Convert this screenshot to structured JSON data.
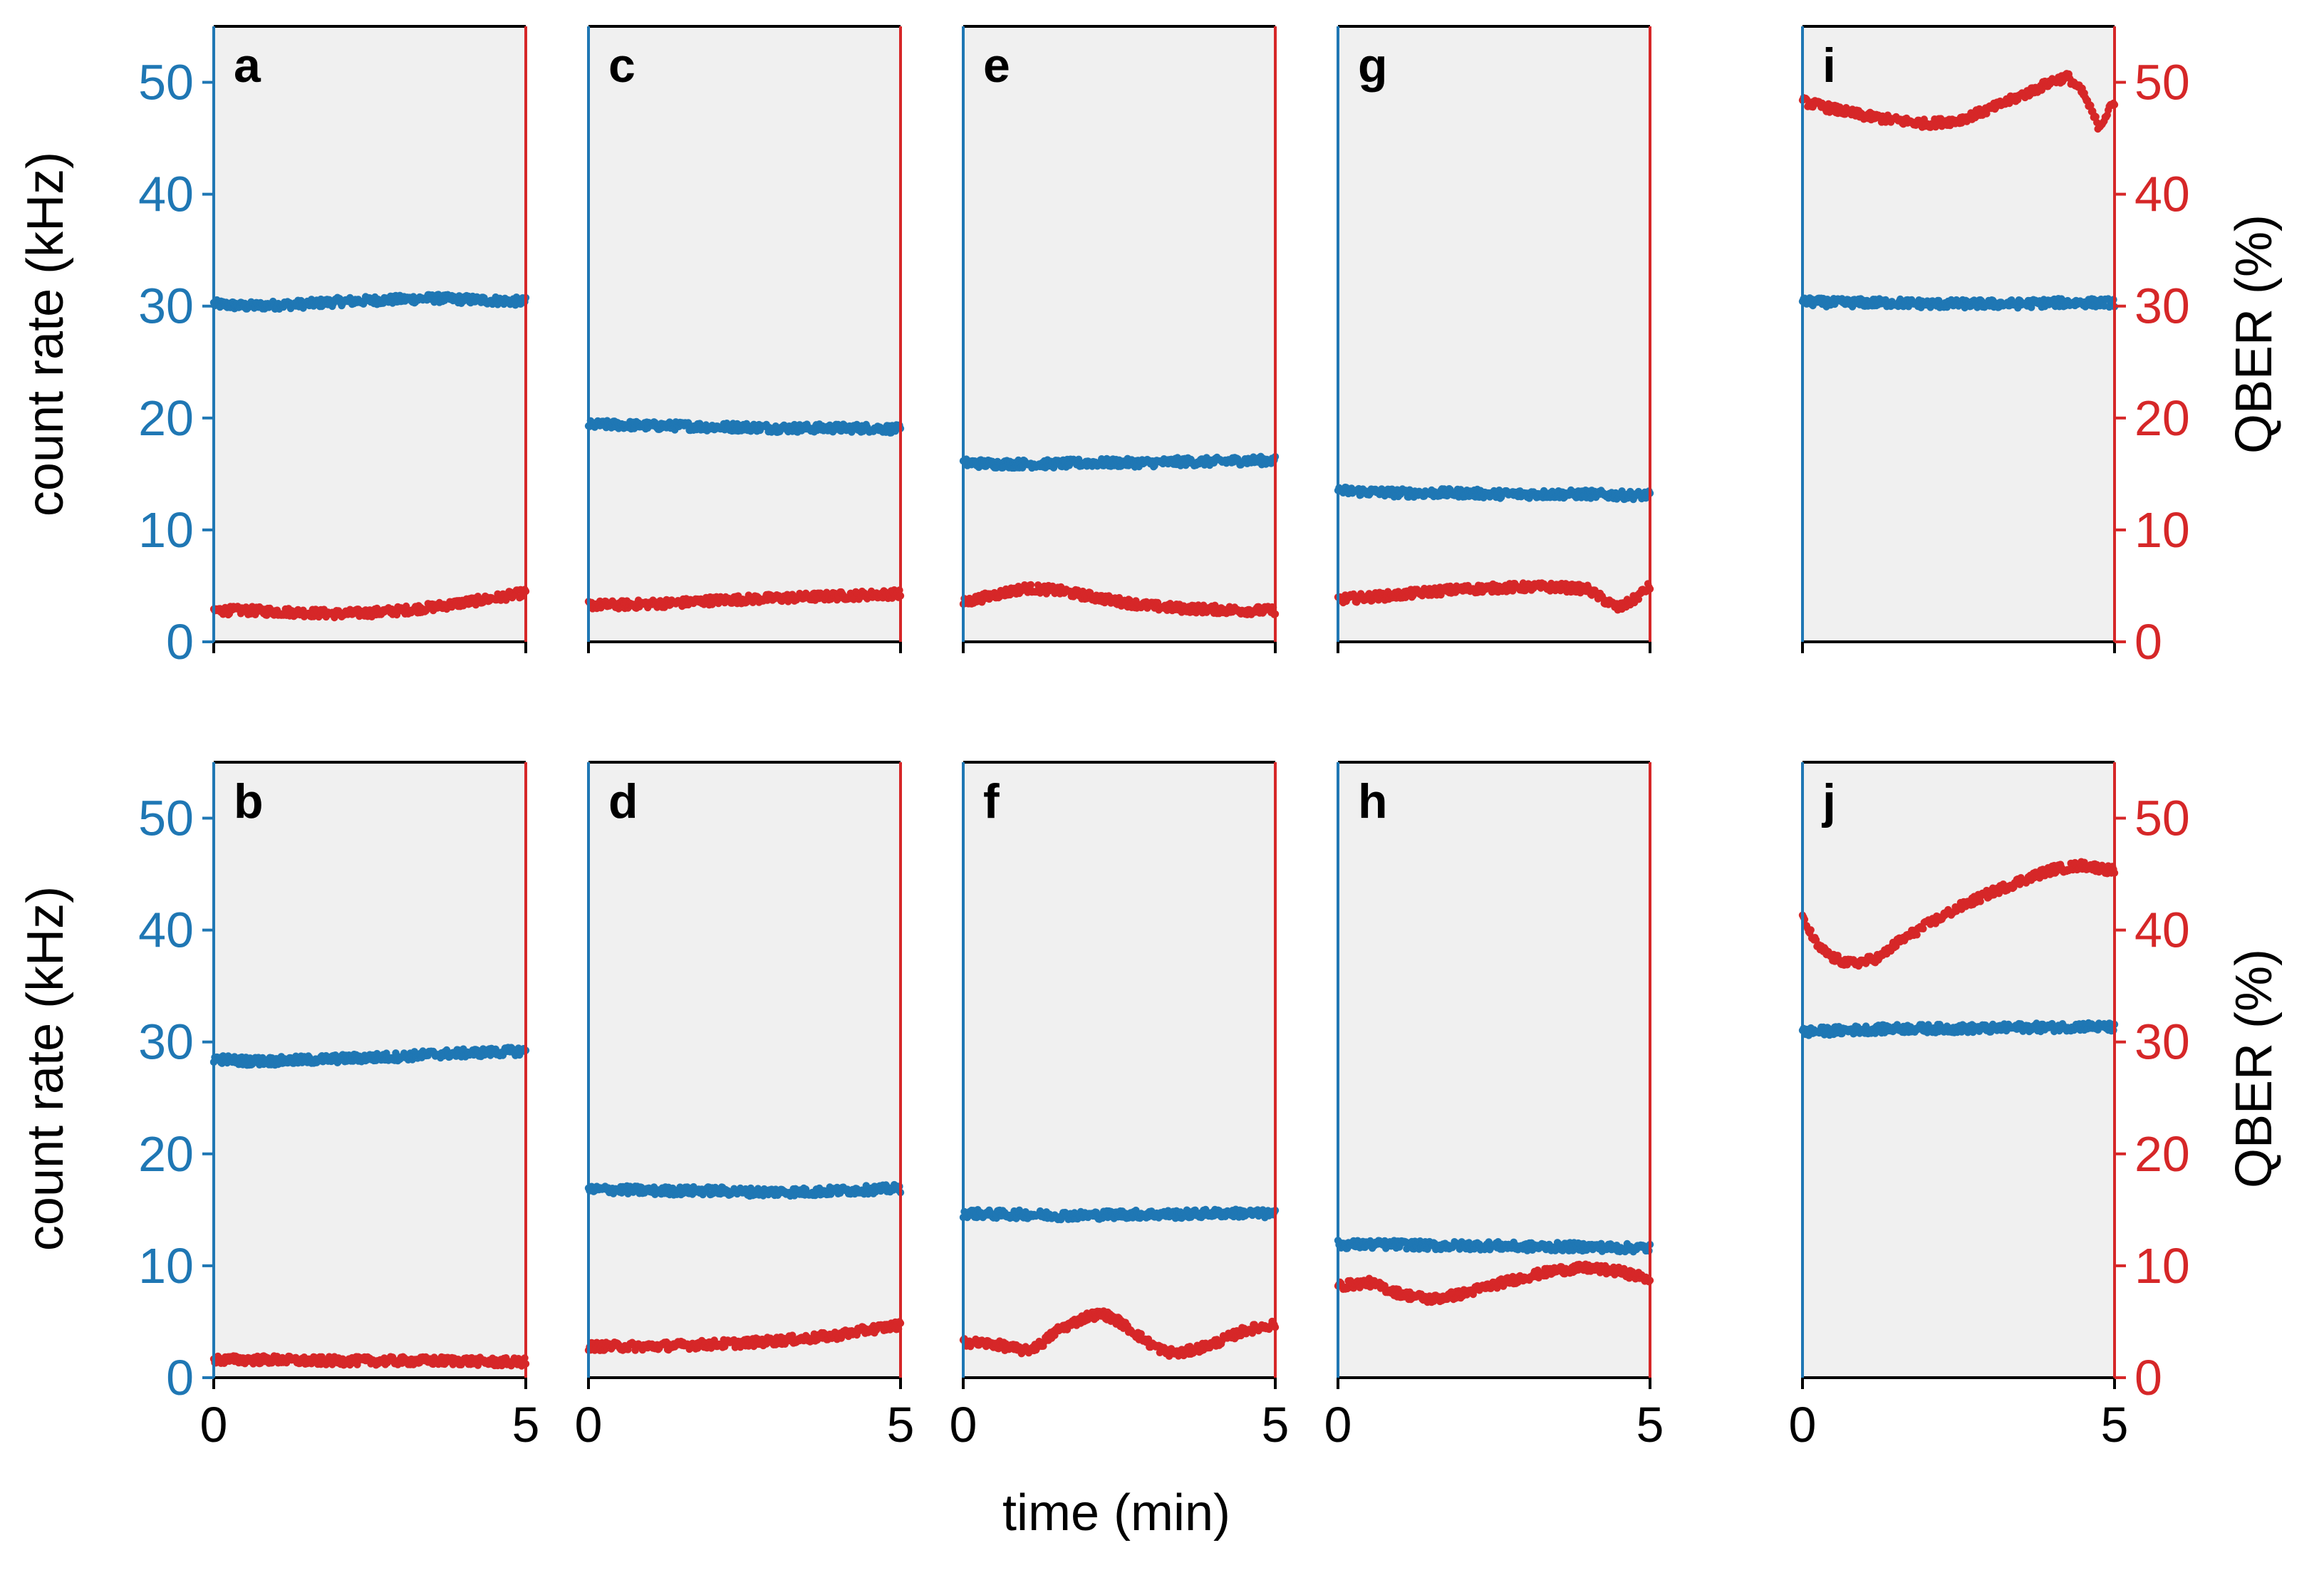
{
  "colors": {
    "count_rate": "#1f77b4",
    "qber": "#d62728",
    "panel_bg": "#f0f0f0",
    "frame": "#000000"
  },
  "axes_text": {
    "left_ylabel": "count rate (kHz)",
    "right_ylabel": "QBER (%)",
    "xlabel": "time (min)"
  },
  "chart_data": [
    {
      "label": "a",
      "type": "scatter",
      "xlim": [
        0,
        5
      ],
      "ylim_left": [
        0,
        55
      ],
      "ylim_right": [
        0,
        55
      ],
      "xticks": [
        "0",
        "5"
      ],
      "yticks_left": [
        "0",
        "10",
        "20",
        "30",
        "40",
        "50"
      ],
      "yticks_right": [],
      "series": [
        {
          "name": "count rate (kHz)",
          "axis": "left",
          "x": [
            0,
            0.5,
            1,
            1.5,
            2,
            2.5,
            3,
            3.5,
            4,
            4.5,
            5
          ],
          "values": [
            30.2,
            30.0,
            30.1,
            30.2,
            30.4,
            30.5,
            30.6,
            30.7,
            30.6,
            30.5,
            30.4
          ]
        },
        {
          "name": "QBER (%)",
          "axis": "right",
          "x": [
            0,
            0.5,
            1,
            1.5,
            2,
            2.5,
            3,
            3.5,
            4,
            4.5,
            5
          ],
          "values": [
            2.8,
            2.8,
            2.7,
            2.6,
            2.5,
            2.6,
            2.8,
            3.1,
            3.5,
            3.9,
            4.4
          ]
        }
      ]
    },
    {
      "label": "c",
      "type": "scatter",
      "xlim": [
        0,
        5
      ],
      "ylim_left": [
        0,
        55
      ],
      "ylim_right": [
        0,
        55
      ],
      "xticks": [
        "0",
        "5"
      ],
      "yticks_left": [],
      "yticks_right": [],
      "series": [
        {
          "name": "count rate (kHz)",
          "axis": "left",
          "x": [
            0,
            0.5,
            1,
            1.5,
            2,
            2.5,
            3,
            3.5,
            4,
            4.5,
            5
          ],
          "values": [
            19.4,
            19.4,
            19.3,
            19.3,
            19.2,
            19.2,
            19.1,
            19.1,
            19.1,
            19.1,
            19.0
          ]
        },
        {
          "name": "QBER (%)",
          "axis": "right",
          "x": [
            0,
            0.5,
            1,
            1.5,
            2,
            2.5,
            3,
            3.5,
            4,
            4.5,
            5
          ],
          "values": [
            3.3,
            3.3,
            3.4,
            3.5,
            3.7,
            3.8,
            3.9,
            4.0,
            4.1,
            4.2,
            4.3
          ]
        }
      ]
    },
    {
      "label": "e",
      "type": "scatter",
      "xlim": [
        0,
        5
      ],
      "ylim_left": [
        0,
        55
      ],
      "ylim_right": [
        0,
        55
      ],
      "xticks": [
        "0",
        "5"
      ],
      "yticks_left": [],
      "yticks_right": [],
      "series": [
        {
          "name": "count rate (kHz)",
          "axis": "left",
          "x": [
            0,
            0.5,
            1,
            1.5,
            2,
            2.5,
            3,
            3.5,
            4,
            4.5,
            5
          ],
          "values": [
            16.0,
            15.9,
            15.9,
            15.9,
            16.0,
            16.0,
            16.0,
            16.1,
            16.1,
            16.2,
            16.2
          ]
        },
        {
          "name": "QBER (%)",
          "axis": "right",
          "x": [
            0,
            0.5,
            1,
            1.5,
            2,
            2.5,
            3,
            3.5,
            4,
            4.5,
            5
          ],
          "values": [
            3.5,
            4.2,
            4.8,
            4.6,
            4.1,
            3.6,
            3.2,
            3.0,
            2.9,
            2.8,
            2.8
          ]
        }
      ]
    },
    {
      "label": "g",
      "type": "scatter",
      "xlim": [
        0,
        5
      ],
      "ylim_left": [
        0,
        55
      ],
      "ylim_right": [
        0,
        55
      ],
      "xticks": [
        "0",
        "5"
      ],
      "yticks_left": [],
      "yticks_right": [],
      "series": [
        {
          "name": "count rate (kHz)",
          "axis": "left",
          "x": [
            0,
            0.5,
            1,
            1.5,
            2,
            2.5,
            3,
            3.5,
            4,
            4.5,
            5
          ],
          "values": [
            13.5,
            13.4,
            13.3,
            13.3,
            13.3,
            13.2,
            13.2,
            13.2,
            13.2,
            13.1,
            13.1
          ]
        },
        {
          "name": "QBER (%)",
          "axis": "right",
          "x": [
            0,
            0.5,
            1,
            1.5,
            2,
            2.5,
            3,
            3.5,
            4,
            4.25,
            4.5,
            4.75,
            5
          ],
          "values": [
            3.8,
            4.0,
            4.2,
            4.5,
            4.7,
            4.8,
            4.9,
            4.9,
            4.7,
            3.8,
            3.0,
            3.8,
            5.0
          ]
        }
      ]
    },
    {
      "label": "i",
      "type": "scatter",
      "xlim": [
        0,
        5
      ],
      "ylim_left": [
        0,
        55
      ],
      "ylim_right": [
        0,
        55
      ],
      "xticks": [
        "0",
        "5"
      ],
      "yticks_left": [],
      "yticks_right": [
        "0",
        "10",
        "20",
        "30",
        "40",
        "50"
      ],
      "series": [
        {
          "name": "count rate (kHz)",
          "axis": "left",
          "x": [
            0,
            0.5,
            1,
            1.5,
            2,
            2.5,
            3,
            3.5,
            4,
            4.5,
            5
          ],
          "values": [
            30.4,
            30.3,
            30.3,
            30.3,
            30.2,
            30.2,
            30.2,
            30.2,
            30.3,
            30.3,
            30.3
          ]
        },
        {
          "name": "QBER (%)",
          "axis": "right",
          "x": [
            0,
            0.5,
            1,
            1.5,
            2,
            2.5,
            3,
            3.5,
            3.75,
            4,
            4.25,
            4.5,
            4.75,
            5
          ],
          "values": [
            48.3,
            47.6,
            47.0,
            46.6,
            46.3,
            46.6,
            47.6,
            48.8,
            49.4,
            50.1,
            50.5,
            49.0,
            46.0,
            48.3
          ]
        }
      ]
    },
    {
      "label": "b",
      "type": "scatter",
      "xlim": [
        0,
        5
      ],
      "ylim_left": [
        0,
        55
      ],
      "ylim_right": [
        0,
        55
      ],
      "xticks": [
        "0",
        "5"
      ],
      "yticks_left": [
        "0",
        "10",
        "20",
        "30",
        "40",
        "50"
      ],
      "yticks_right": [],
      "series": [
        {
          "name": "count rate (kHz)",
          "axis": "left",
          "x": [
            0,
            0.5,
            1,
            1.5,
            2,
            2.5,
            3,
            3.5,
            4,
            4.5,
            5
          ],
          "values": [
            28.5,
            28.3,
            28.3,
            28.4,
            28.5,
            28.6,
            28.7,
            28.9,
            29.0,
            29.1,
            29.2
          ]
        },
        {
          "name": "QBER (%)",
          "axis": "right",
          "x": [
            0,
            0.5,
            1,
            1.5,
            2,
            2.5,
            3,
            3.5,
            4,
            4.5,
            5
          ],
          "values": [
            1.6,
            1.6,
            1.6,
            1.5,
            1.5,
            1.5,
            1.5,
            1.5,
            1.5,
            1.4,
            1.4
          ]
        }
      ]
    },
    {
      "label": "d",
      "type": "scatter",
      "xlim": [
        0,
        5
      ],
      "ylim_left": [
        0,
        55
      ],
      "ylim_right": [
        0,
        55
      ],
      "xticks": [
        "0",
        "5"
      ],
      "yticks_left": [],
      "yticks_right": [],
      "series": [
        {
          "name": "count rate (kHz)",
          "axis": "left",
          "x": [
            0,
            0.5,
            1,
            1.5,
            2,
            2.5,
            3,
            3.5,
            4,
            4.5,
            5
          ],
          "values": [
            16.8,
            16.8,
            16.7,
            16.7,
            16.7,
            16.6,
            16.6,
            16.6,
            16.7,
            16.8,
            16.9
          ]
        },
        {
          "name": "QBER (%)",
          "axis": "right",
          "x": [
            0,
            0.5,
            1,
            1.5,
            2,
            2.5,
            3,
            3.5,
            4,
            4.5,
            5
          ],
          "values": [
            2.8,
            2.8,
            2.8,
            2.9,
            3.0,
            3.1,
            3.3,
            3.5,
            3.8,
            4.3,
            4.7
          ]
        }
      ]
    },
    {
      "label": "f",
      "type": "scatter",
      "xlim": [
        0,
        5
      ],
      "ylim_left": [
        0,
        55
      ],
      "ylim_right": [
        0,
        55
      ],
      "xticks": [
        "0",
        "5"
      ],
      "yticks_left": [],
      "yticks_right": [],
      "series": [
        {
          "name": "count rate (kHz)",
          "axis": "left",
          "x": [
            0,
            0.5,
            1,
            1.5,
            2,
            2.5,
            3,
            3.5,
            4,
            4.5,
            5
          ],
          "values": [
            14.7,
            14.6,
            14.6,
            14.5,
            14.5,
            14.6,
            14.6,
            14.6,
            14.7,
            14.7,
            14.6
          ]
        },
        {
          "name": "QBER (%)",
          "axis": "right",
          "x": [
            0,
            0.5,
            1,
            1.25,
            1.5,
            2,
            2.25,
            2.5,
            3,
            3.25,
            3.5,
            4,
            4.5,
            5
          ],
          "values": [
            3.2,
            3.0,
            2.4,
            3.0,
            4.2,
            5.5,
            5.7,
            5.0,
            3.0,
            2.3,
            2.2,
            3.0,
            4.2,
            4.8
          ]
        }
      ]
    },
    {
      "label": "h",
      "type": "scatter",
      "xlim": [
        0,
        5
      ],
      "ylim_left": [
        0,
        55
      ],
      "ylim_right": [
        0,
        55
      ],
      "xticks": [
        "0",
        "5"
      ],
      "yticks_left": [],
      "yticks_right": [],
      "series": [
        {
          "name": "count rate (kHz)",
          "axis": "left",
          "x": [
            0,
            0.5,
            1,
            1.5,
            2,
            2.5,
            3,
            3.5,
            4,
            4.5,
            5
          ],
          "values": [
            11.9,
            11.9,
            11.9,
            11.8,
            11.8,
            11.8,
            11.7,
            11.7,
            11.7,
            11.6,
            11.6
          ]
        },
        {
          "name": "QBER (%)",
          "axis": "right",
          "x": [
            0,
            0.5,
            1,
            1.5,
            2,
            2.5,
            3,
            3.5,
            4,
            4.5,
            5
          ],
          "values": [
            8.2,
            8.5,
            7.5,
            7.0,
            7.5,
            8.3,
            9.0,
            9.6,
            9.8,
            9.5,
            8.8
          ]
        }
      ]
    },
    {
      "label": "j",
      "type": "scatter",
      "xlim": [
        0,
        5
      ],
      "ylim_left": [
        0,
        55
      ],
      "ylim_right": [
        0,
        55
      ],
      "xticks": [
        "0",
        "5"
      ],
      "yticks_left": [],
      "yticks_right": [
        "0",
        "10",
        "20",
        "30",
        "40",
        "50"
      ],
      "series": [
        {
          "name": "count rate (kHz)",
          "axis": "left",
          "x": [
            0,
            0.5,
            1,
            1.5,
            2,
            2.5,
            3,
            3.5,
            4,
            4.5,
            5
          ],
          "values": [
            30.9,
            31.0,
            31.1,
            31.2,
            31.2,
            31.2,
            31.2,
            31.3,
            31.3,
            31.4,
            31.3
          ]
        },
        {
          "name": "QBER (%)",
          "axis": "right",
          "x": [
            0,
            0.25,
            0.5,
            0.75,
            1,
            1.25,
            1.5,
            2,
            2.5,
            3,
            3.5,
            4,
            4.5,
            5
          ],
          "values": [
            41.0,
            38.5,
            37.5,
            37.0,
            37.2,
            37.6,
            38.8,
            40.5,
            42.0,
            43.3,
            44.4,
            45.4,
            45.8,
            45.3
          ]
        }
      ]
    }
  ]
}
